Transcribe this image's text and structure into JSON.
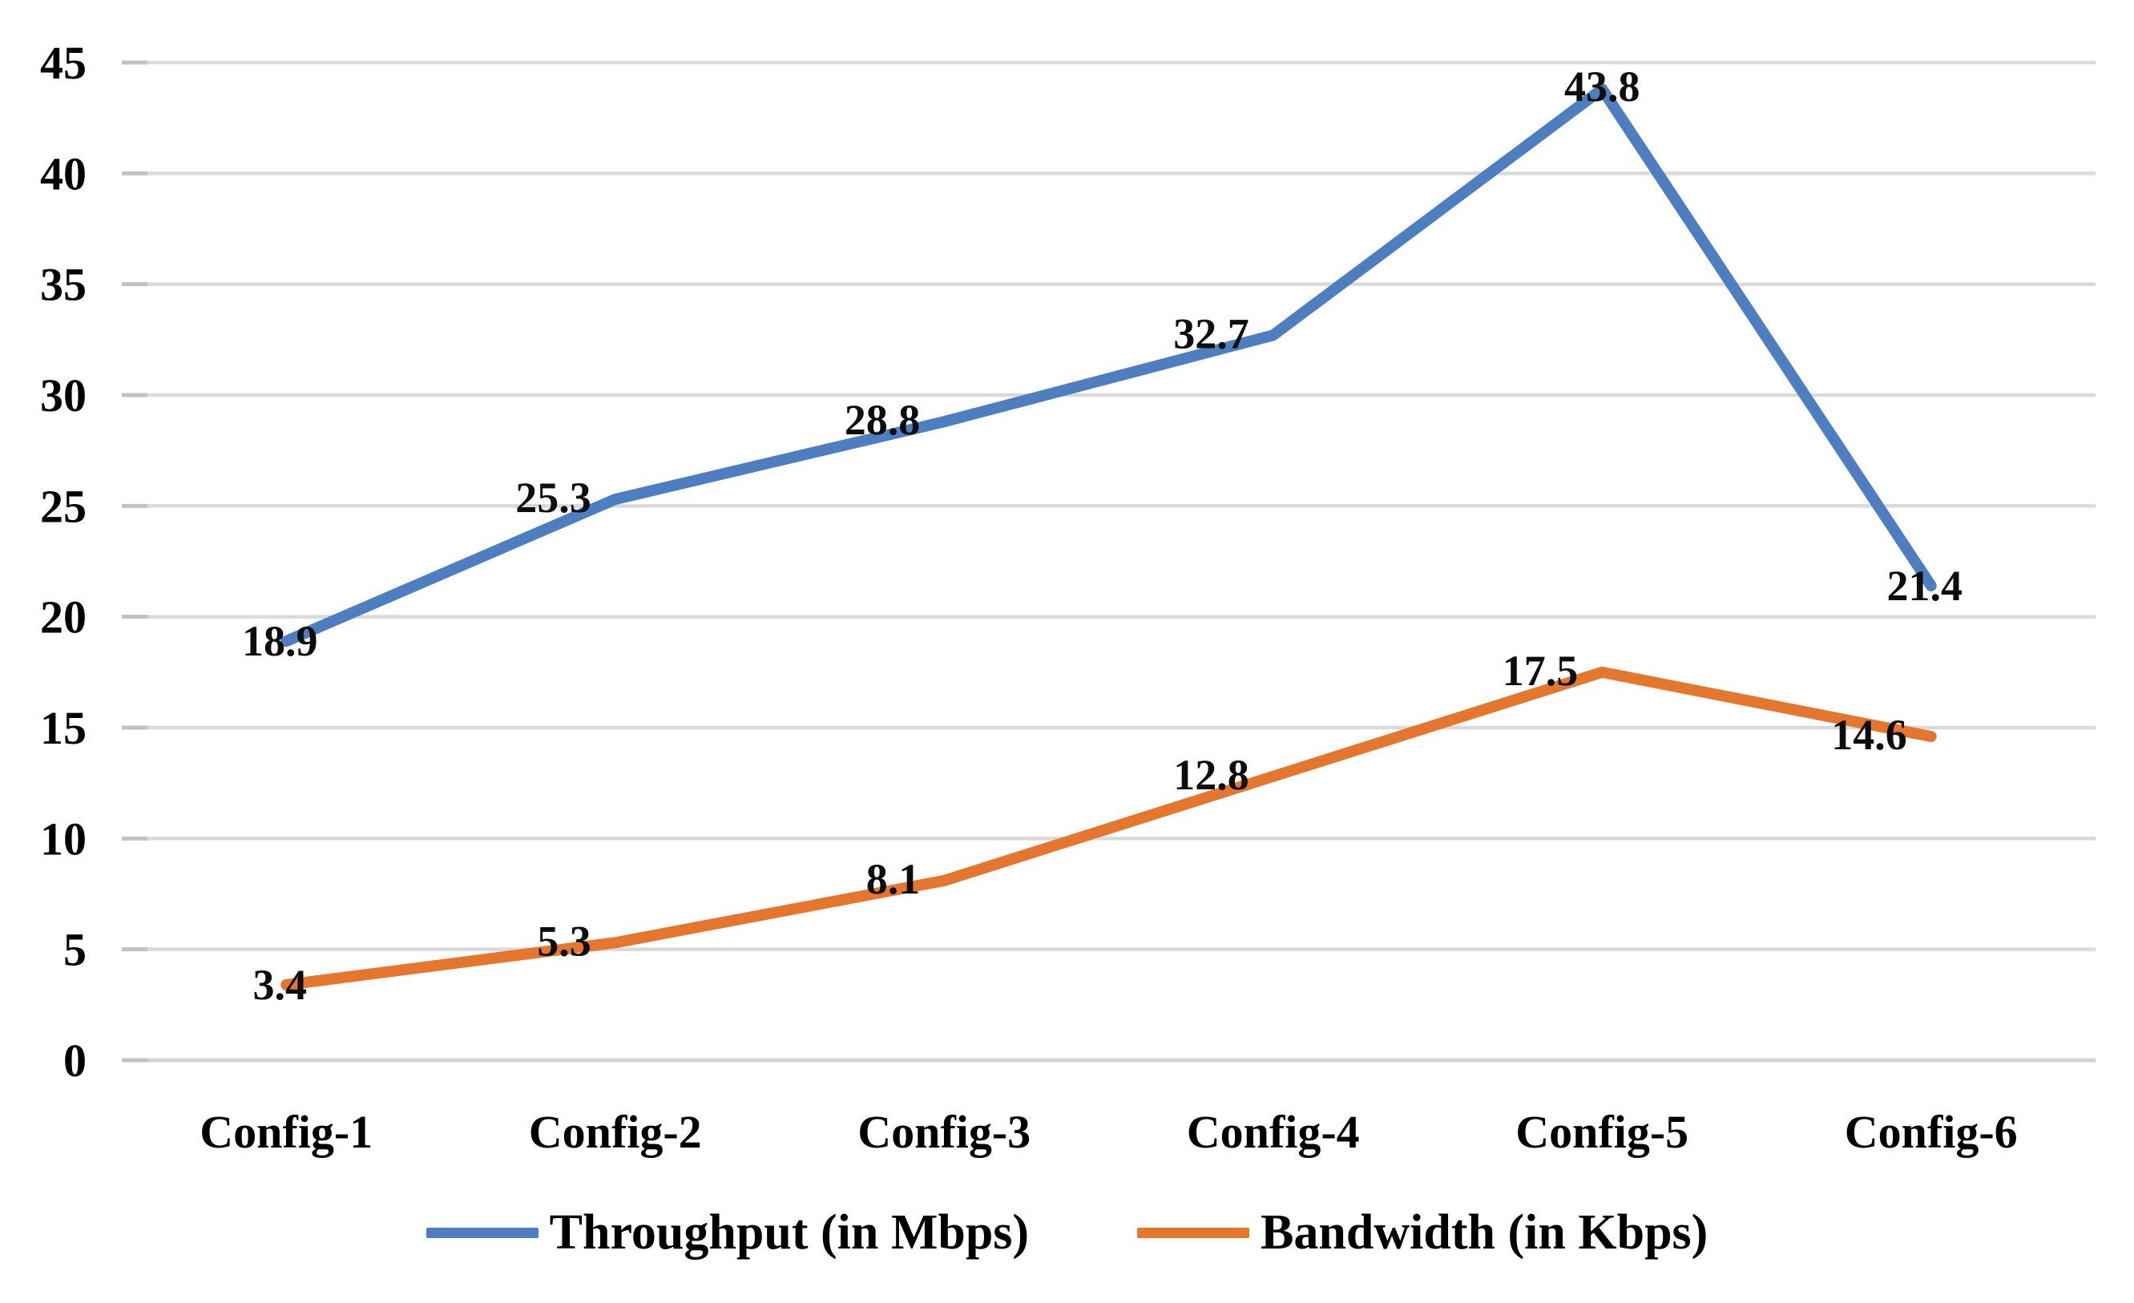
{
  "chart_data": {
    "type": "line",
    "title": "",
    "xlabel": "",
    "ylabel": "",
    "categories": [
      "Config-1",
      "Config-2",
      "Config-3",
      "Config-4",
      "Config-5",
      "Config-6"
    ],
    "series": [
      {
        "name": "Throughput (in Mbps)",
        "key": "throughput",
        "color": "#4d7ebf",
        "values": [
          18.9,
          25.3,
          28.8,
          32.7,
          43.8,
          21.4
        ],
        "labels": [
          "18.9",
          "25.3",
          "28.8",
          "32.7",
          "43.8",
          "21.4"
        ]
      },
      {
        "name": "Bandwidth (in Kbps)",
        "key": "bandwidth",
        "color": "#e5762e",
        "values": [
          3.4,
          5.3,
          8.1,
          12.8,
          17.5,
          14.6
        ],
        "labels": [
          "3.4",
          "5.3",
          "8.1",
          "12.8",
          "17.5",
          "14.6"
        ]
      }
    ],
    "ylim": [
      0,
      45
    ],
    "yticks": [
      0,
      5,
      10,
      15,
      20,
      25,
      30,
      35,
      40,
      45
    ],
    "grid": "horizontal",
    "gridline_color": "#d9d9d9",
    "data_labels": true,
    "legend_position": "bottom"
  }
}
